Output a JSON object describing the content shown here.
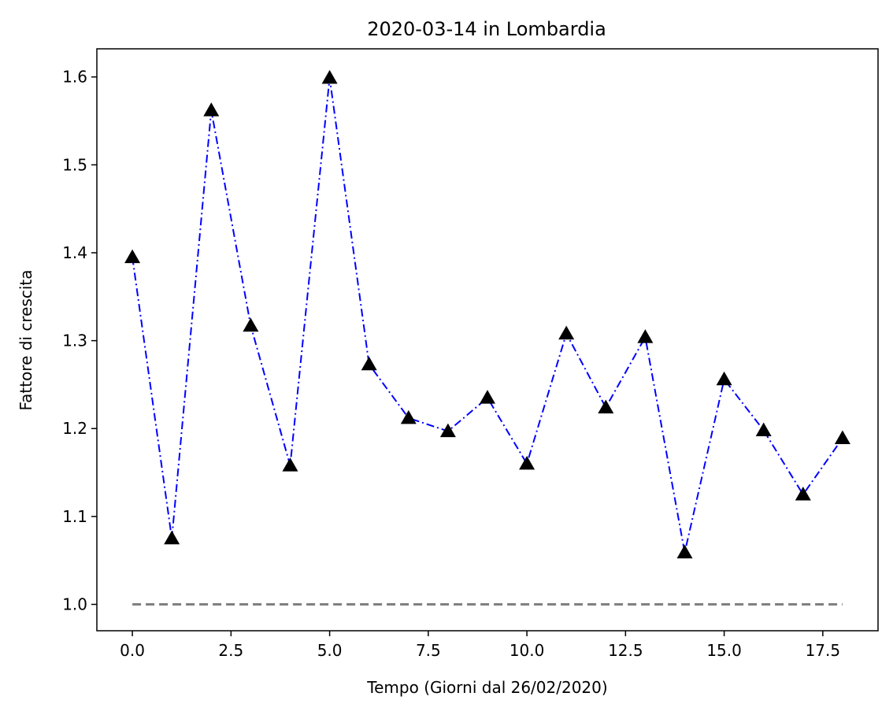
{
  "chart_data": {
    "type": "line",
    "title": "2020-03-14 in Lombardia",
    "xlabel": "Tempo (Giorni dal 26/02/2020)",
    "ylabel": "Fattore di crescita",
    "xlim": [
      -0.9,
      18.9
    ],
    "ylim": [
      0.97,
      1.632
    ],
    "xticks": [
      0.0,
      2.5,
      5.0,
      7.5,
      10.0,
      12.5,
      15.0,
      17.5
    ],
    "xtick_labels": [
      "0.0",
      "2.5",
      "5.0",
      "7.5",
      "10.0",
      "12.5",
      "15.0",
      "17.5"
    ],
    "yticks": [
      1.0,
      1.1,
      1.2,
      1.3,
      1.4,
      1.5,
      1.6
    ],
    "ytick_labels": [
      "1.0",
      "1.1",
      "1.2",
      "1.3",
      "1.4",
      "1.5",
      "1.6"
    ],
    "grid": false,
    "series": [
      {
        "style": "dash-dot line with triangle markers",
        "line_color": "#0000ff",
        "marker_color": "#000000",
        "marker": "triangle-up",
        "x": [
          0,
          1,
          2,
          3,
          4,
          5,
          6,
          7,
          8,
          9,
          10,
          11,
          12,
          13,
          14,
          15,
          16,
          17,
          18
        ],
        "y": [
          1.395,
          1.075,
          1.562,
          1.317,
          1.158,
          1.599,
          1.273,
          1.212,
          1.197,
          1.235,
          1.16,
          1.308,
          1.224,
          1.304,
          1.059,
          1.256,
          1.198,
          1.125,
          1.189
        ]
      },
      {
        "style": "dashed reference line",
        "line_color": "#808080",
        "x": [
          0,
          18
        ],
        "y": [
          1.0,
          1.0
        ]
      }
    ]
  }
}
